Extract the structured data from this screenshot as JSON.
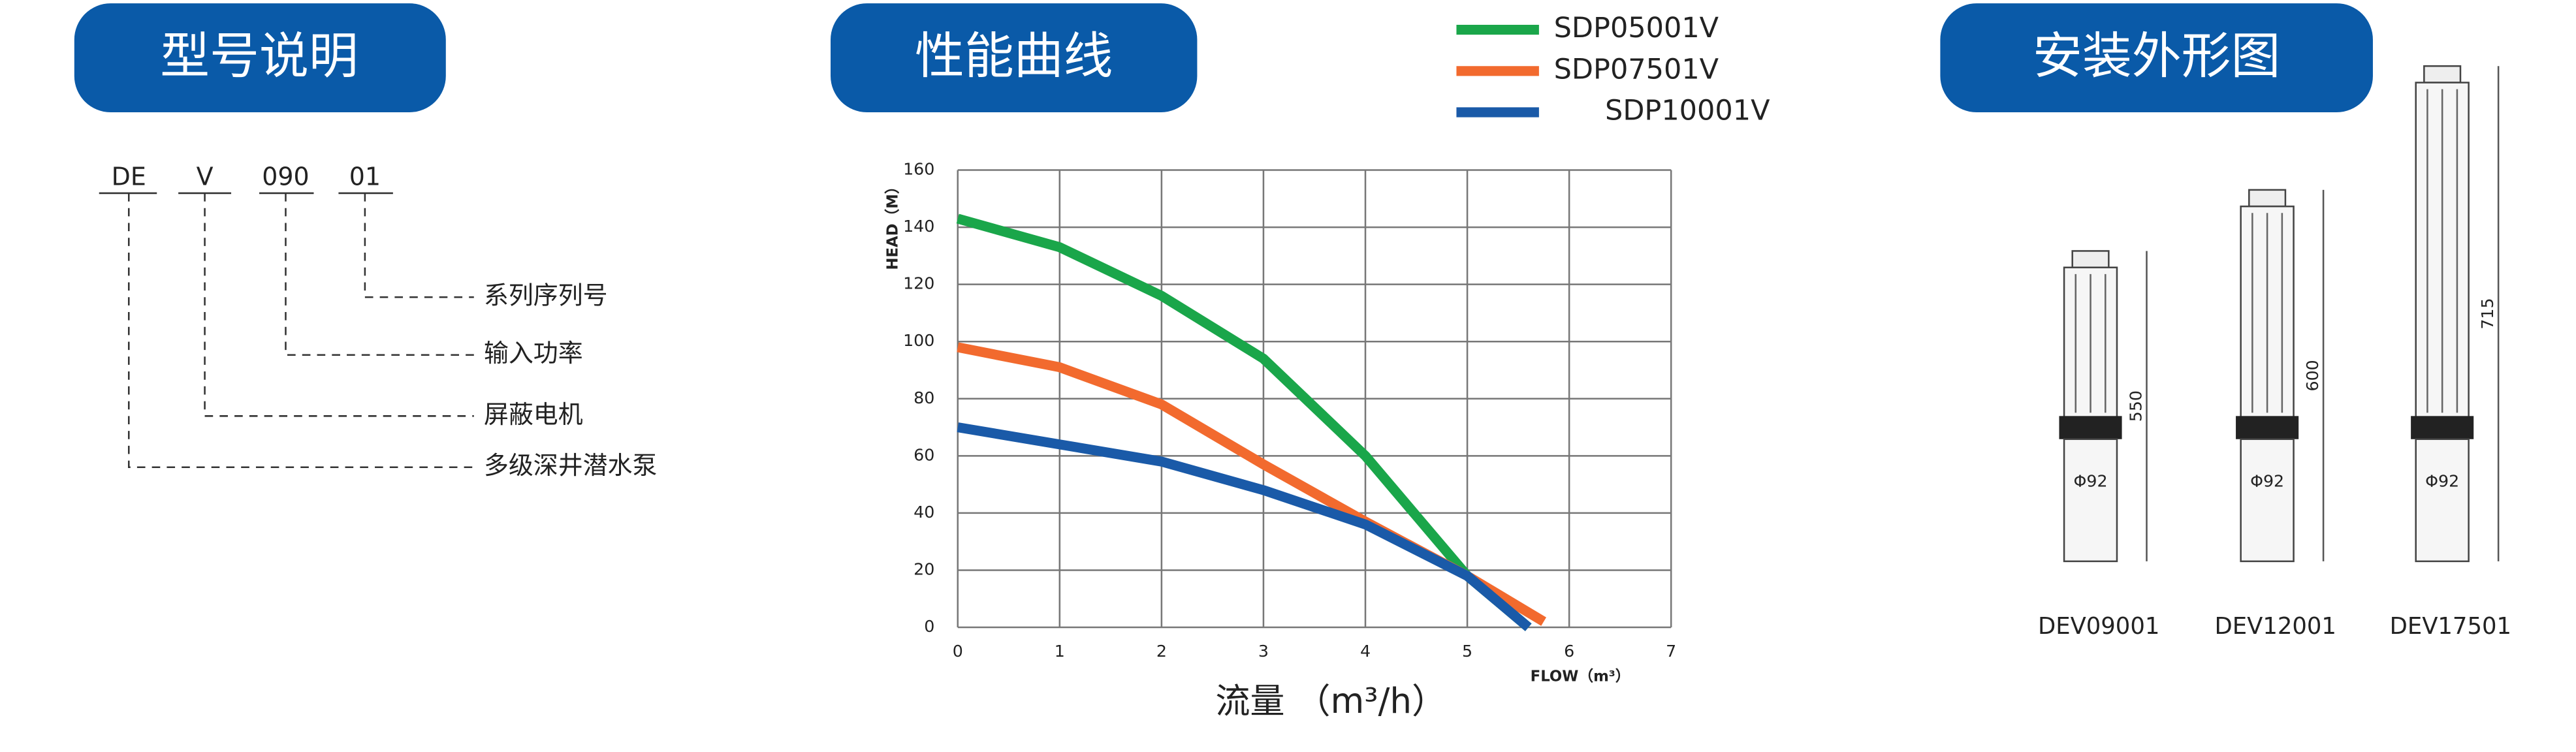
{
  "sections": [
    "型号说明",
    "性能曲线",
    "安装外形图"
  ],
  "model_code": {
    "parts": [
      "DE",
      "V",
      "090",
      "01"
    ],
    "meanings": [
      "多级深井潜水泵",
      "屏蔽电机",
      "输入功率",
      "系列序列号"
    ]
  },
  "chart_data": {
    "type": "line",
    "y_label": "HEAD（M）",
    "x_label": "FLOW（m³）",
    "caption": "流量 （m³/h）",
    "xlim": [
      0,
      7
    ],
    "xticks": [
      0,
      1,
      2,
      3,
      4,
      5,
      6,
      7
    ],
    "ylim": [
      0,
      160
    ],
    "yticks": [
      0,
      20,
      40,
      60,
      80,
      100,
      120,
      140,
      160
    ],
    "grid": true,
    "series": [
      {
        "name": "SDP05001V",
        "color": "#1aa64a",
        "x": [
          0,
          1,
          2,
          3,
          4,
          5,
          5.6
        ],
        "values": [
          143,
          133,
          116,
          94,
          60,
          18,
          0
        ]
      },
      {
        "name": "SDP07501V",
        "color": "#f26a2e",
        "x": [
          0,
          1,
          2,
          3,
          4,
          5,
          5.75
        ],
        "values": [
          98,
          91,
          78,
          57,
          37,
          18,
          2
        ]
      },
      {
        "name": "SDP10001V",
        "color": "#1a5aa8",
        "x": [
          0,
          1,
          2,
          3,
          4,
          5,
          5.6
        ],
        "values": [
          70,
          64,
          58,
          48,
          36,
          18,
          0
        ]
      }
    ]
  },
  "products": [
    {
      "name": "DEV09001",
      "length": "550",
      "diameter": "Φ92"
    },
    {
      "name": "DEV12001",
      "length": "600",
      "diameter": "Φ92"
    },
    {
      "name": "DEV17501",
      "length": "715",
      "diameter": "Φ92"
    }
  ]
}
